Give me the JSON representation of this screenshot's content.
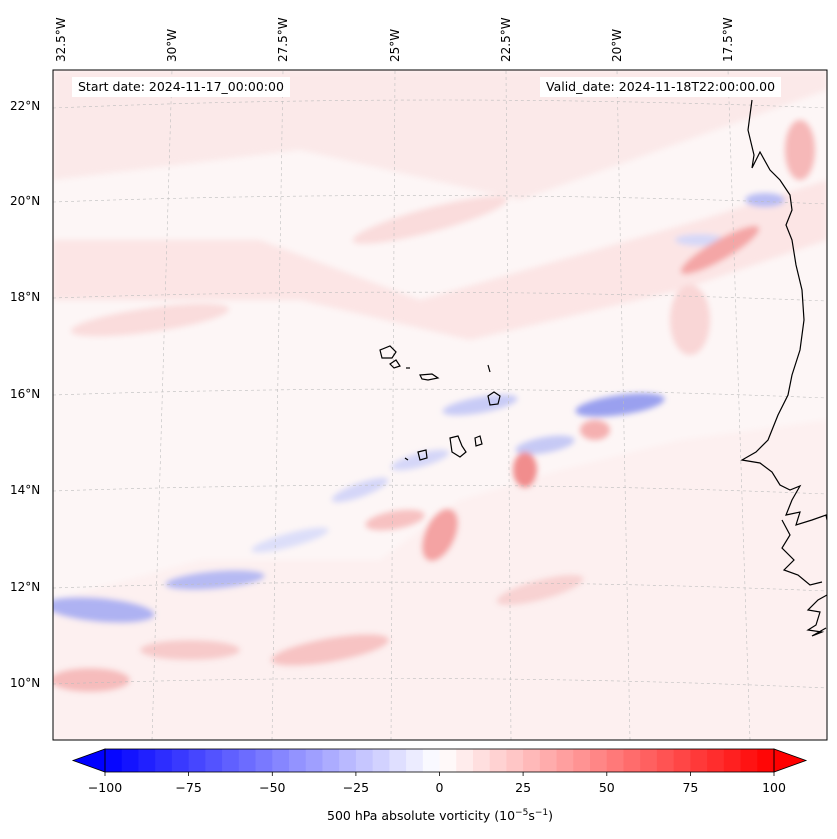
{
  "map": {
    "start_date": "Start date: 2024-11-17_00:00:00",
    "valid_date": "Valid_date: 2024-11-18T22:00:00.00",
    "lon_labels": [
      "32.5°W",
      "30°W",
      "27.5°W",
      "25°W",
      "22.5°W",
      "20°W",
      "17.5°W"
    ],
    "lat_labels": [
      "22°N",
      "20°N",
      "18°N",
      "16°N",
      "14°N",
      "12°N",
      "10°N"
    ]
  },
  "colorbar": {
    "ticks": [
      "−100",
      "−75",
      "−50",
      "−25",
      "0",
      "25",
      "50",
      "75",
      "100"
    ],
    "label_main": "500 hPa absolute vorticity (10",
    "label_exp1": "−5",
    "label_mid": "s",
    "label_exp2": "−1",
    "label_end": ")",
    "min": -100,
    "max": 100,
    "low_color": "#0000ff",
    "high_color": "#ff0000"
  }
}
